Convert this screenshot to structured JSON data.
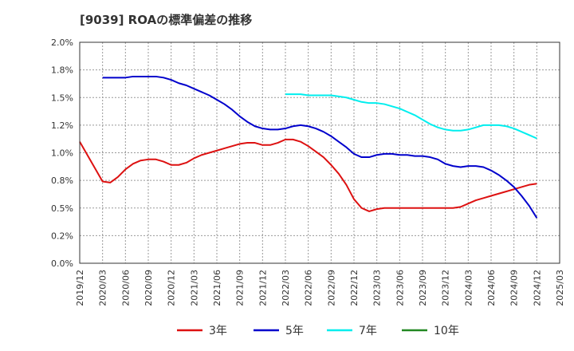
{
  "chart_data": {
    "type": "line",
    "title": "[9039]  ROAの標準偏差の推移",
    "xlabel": "",
    "ylabel": "",
    "ylim": [
      0,
      0.02
    ],
    "grid": true,
    "legend_position": "bottom",
    "x_ticks": [
      "2019/12",
      "2020/03",
      "2020/06",
      "2020/09",
      "2020/12",
      "2021/03",
      "2021/06",
      "2021/09",
      "2021/12",
      "2022/03",
      "2022/06",
      "2022/09",
      "2022/12",
      "2023/03",
      "2023/06",
      "2023/09",
      "2023/12",
      "2024/03",
      "2024/06",
      "2024/09",
      "2024/12",
      "2025/03"
    ],
    "y_ticks": [
      "0.0%",
      "0.2%",
      "0.5%",
      "0.8%",
      "1.0%",
      "1.2%",
      "1.5%",
      "1.8%",
      "2.0%"
    ],
    "series": [
      {
        "name": "3年",
        "color": "#dd1111",
        "points": [
          [
            "2019/12",
            0.011
          ],
          [
            "2020/01",
            0.0098
          ],
          [
            "2020/02",
            0.0086
          ],
          [
            "2020/03",
            0.0074
          ],
          [
            "2020/04",
            0.0073
          ],
          [
            "2020/05",
            0.0078
          ],
          [
            "2020/06",
            0.0085
          ],
          [
            "2020/07",
            0.009
          ],
          [
            "2020/08",
            0.0093
          ],
          [
            "2020/09",
            0.0094
          ],
          [
            "2020/10",
            0.0094
          ],
          [
            "2020/11",
            0.0092
          ],
          [
            "2020/12",
            0.0089
          ],
          [
            "2021/01",
            0.0089
          ],
          [
            "2021/02",
            0.0091
          ],
          [
            "2021/03",
            0.0095
          ],
          [
            "2021/04",
            0.0098
          ],
          [
            "2021/05",
            0.01
          ],
          [
            "2021/06",
            0.0102
          ],
          [
            "2021/07",
            0.0104
          ],
          [
            "2021/08",
            0.0106
          ],
          [
            "2021/09",
            0.0108
          ],
          [
            "2021/10",
            0.0109
          ],
          [
            "2021/11",
            0.0109
          ],
          [
            "2021/12",
            0.0107
          ],
          [
            "2022/01",
            0.0107
          ],
          [
            "2022/02",
            0.0109
          ],
          [
            "2022/03",
            0.0112
          ],
          [
            "2022/04",
            0.0112
          ],
          [
            "2022/05",
            0.011
          ],
          [
            "2022/06",
            0.0106
          ],
          [
            "2022/07",
            0.0101
          ],
          [
            "2022/08",
            0.0096
          ],
          [
            "2022/09",
            0.0089
          ],
          [
            "2022/10",
            0.0081
          ],
          [
            "2022/11",
            0.0071
          ],
          [
            "2022/12",
            0.0058
          ],
          [
            "2023/01",
            0.005
          ],
          [
            "2023/02",
            0.0047
          ],
          [
            "2023/03",
            0.0049
          ],
          [
            "2023/04",
            0.005
          ],
          [
            "2023/05",
            0.005
          ],
          [
            "2023/06",
            0.005
          ],
          [
            "2023/07",
            0.005
          ],
          [
            "2023/08",
            0.005
          ],
          [
            "2023/09",
            0.005
          ],
          [
            "2023/10",
            0.005
          ],
          [
            "2023/11",
            0.005
          ],
          [
            "2023/12",
            0.005
          ],
          [
            "2024/01",
            0.005
          ],
          [
            "2024/02",
            0.0051
          ],
          [
            "2024/03",
            0.0054
          ],
          [
            "2024/04",
            0.0057
          ],
          [
            "2024/05",
            0.0059
          ],
          [
            "2024/06",
            0.0061
          ],
          [
            "2024/07",
            0.0063
          ],
          [
            "2024/08",
            0.0065
          ],
          [
            "2024/09",
            0.0067
          ],
          [
            "2024/10",
            0.0069
          ],
          [
            "2024/11",
            0.0071
          ],
          [
            "2024/12",
            0.0072
          ]
        ]
      },
      {
        "name": "5年",
        "color": "#0000cc",
        "points": [
          [
            "2020/03",
            0.0168
          ],
          [
            "2020/04",
            0.0168
          ],
          [
            "2020/05",
            0.0168
          ],
          [
            "2020/06",
            0.0168
          ],
          [
            "2020/07",
            0.0169
          ],
          [
            "2020/08",
            0.0169
          ],
          [
            "2020/09",
            0.0169
          ],
          [
            "2020/10",
            0.0169
          ],
          [
            "2020/11",
            0.0168
          ],
          [
            "2020/12",
            0.0166
          ],
          [
            "2021/01",
            0.0163
          ],
          [
            "2021/02",
            0.0161
          ],
          [
            "2021/03",
            0.0158
          ],
          [
            "2021/04",
            0.0155
          ],
          [
            "2021/05",
            0.0152
          ],
          [
            "2021/06",
            0.0148
          ],
          [
            "2021/07",
            0.0144
          ],
          [
            "2021/08",
            0.0139
          ],
          [
            "2021/09",
            0.0133
          ],
          [
            "2021/10",
            0.0128
          ],
          [
            "2021/11",
            0.0124
          ],
          [
            "2021/12",
            0.0122
          ],
          [
            "2022/01",
            0.0121
          ],
          [
            "2022/02",
            0.0121
          ],
          [
            "2022/03",
            0.0122
          ],
          [
            "2022/04",
            0.0124
          ],
          [
            "2022/05",
            0.0125
          ],
          [
            "2022/06",
            0.0124
          ],
          [
            "2022/07",
            0.0122
          ],
          [
            "2022/08",
            0.0119
          ],
          [
            "2022/09",
            0.0115
          ],
          [
            "2022/10",
            0.011
          ],
          [
            "2022/11",
            0.0105
          ],
          [
            "2022/12",
            0.0099
          ],
          [
            "2023/01",
            0.0096
          ],
          [
            "2023/02",
            0.0096
          ],
          [
            "2023/03",
            0.0098
          ],
          [
            "2023/04",
            0.0099
          ],
          [
            "2023/05",
            0.0099
          ],
          [
            "2023/06",
            0.0098
          ],
          [
            "2023/07",
            0.0098
          ],
          [
            "2023/08",
            0.0097
          ],
          [
            "2023/09",
            0.0097
          ],
          [
            "2023/10",
            0.0096
          ],
          [
            "2023/11",
            0.0094
          ],
          [
            "2023/12",
            0.009
          ],
          [
            "2024/01",
            0.0088
          ],
          [
            "2024/02",
            0.0087
          ],
          [
            "2024/03",
            0.0088
          ],
          [
            "2024/04",
            0.0088
          ],
          [
            "2024/05",
            0.0087
          ],
          [
            "2024/06",
            0.0084
          ],
          [
            "2024/07",
            0.008
          ],
          [
            "2024/08",
            0.0075
          ],
          [
            "2024/09",
            0.0069
          ],
          [
            "2024/10",
            0.0061
          ],
          [
            "2024/11",
            0.0052
          ],
          [
            "2024/12",
            0.0041
          ]
        ]
      },
      {
        "name": "7年",
        "color": "#00eeee",
        "points": [
          [
            "2022/03",
            0.0153
          ],
          [
            "2022/04",
            0.0153
          ],
          [
            "2022/05",
            0.0153
          ],
          [
            "2022/06",
            0.0152
          ],
          [
            "2022/07",
            0.0152
          ],
          [
            "2022/08",
            0.0152
          ],
          [
            "2022/09",
            0.0152
          ],
          [
            "2022/10",
            0.0151
          ],
          [
            "2022/11",
            0.015
          ],
          [
            "2022/12",
            0.0148
          ],
          [
            "2023/01",
            0.0146
          ],
          [
            "2023/02",
            0.0145
          ],
          [
            "2023/03",
            0.0145
          ],
          [
            "2023/04",
            0.0144
          ],
          [
            "2023/05",
            0.0142
          ],
          [
            "2023/06",
            0.014
          ],
          [
            "2023/07",
            0.0137
          ],
          [
            "2023/08",
            0.0134
          ],
          [
            "2023/09",
            0.013
          ],
          [
            "2023/10",
            0.0126
          ],
          [
            "2023/11",
            0.0123
          ],
          [
            "2023/12",
            0.0121
          ],
          [
            "2024/01",
            0.012
          ],
          [
            "2024/02",
            0.012
          ],
          [
            "2024/03",
            0.0121
          ],
          [
            "2024/04",
            0.0123
          ],
          [
            "2024/05",
            0.0125
          ],
          [
            "2024/06",
            0.0125
          ],
          [
            "2024/07",
            0.0125
          ],
          [
            "2024/08",
            0.0124
          ],
          [
            "2024/09",
            0.0122
          ],
          [
            "2024/10",
            0.0119
          ],
          [
            "2024/11",
            0.0116
          ],
          [
            "2024/12",
            0.0113
          ]
        ]
      },
      {
        "name": "10年",
        "color": "#228822",
        "points": []
      }
    ]
  }
}
